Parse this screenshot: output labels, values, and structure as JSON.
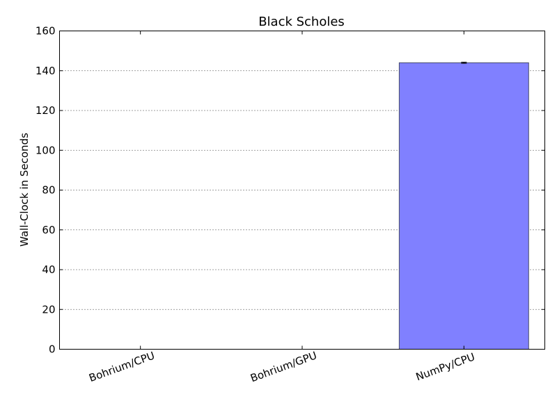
{
  "chart_data": {
    "type": "bar",
    "title": "Black Scholes",
    "xlabel": "",
    "ylabel": "Wall-Clock in Seconds",
    "categories": [
      "Bohrium/CPU",
      "Bohrium/GPU",
      "NumPy/CPU"
    ],
    "values": [
      0,
      0,
      144
    ],
    "error": [
      0,
      0,
      0.3
    ],
    "ylim": [
      0,
      160
    ],
    "yticks": [
      "0",
      "20",
      "40",
      "60",
      "80",
      "100",
      "120",
      "140",
      "160"
    ],
    "grid": "horizontal dotted",
    "bar_color": "#8080ff"
  }
}
